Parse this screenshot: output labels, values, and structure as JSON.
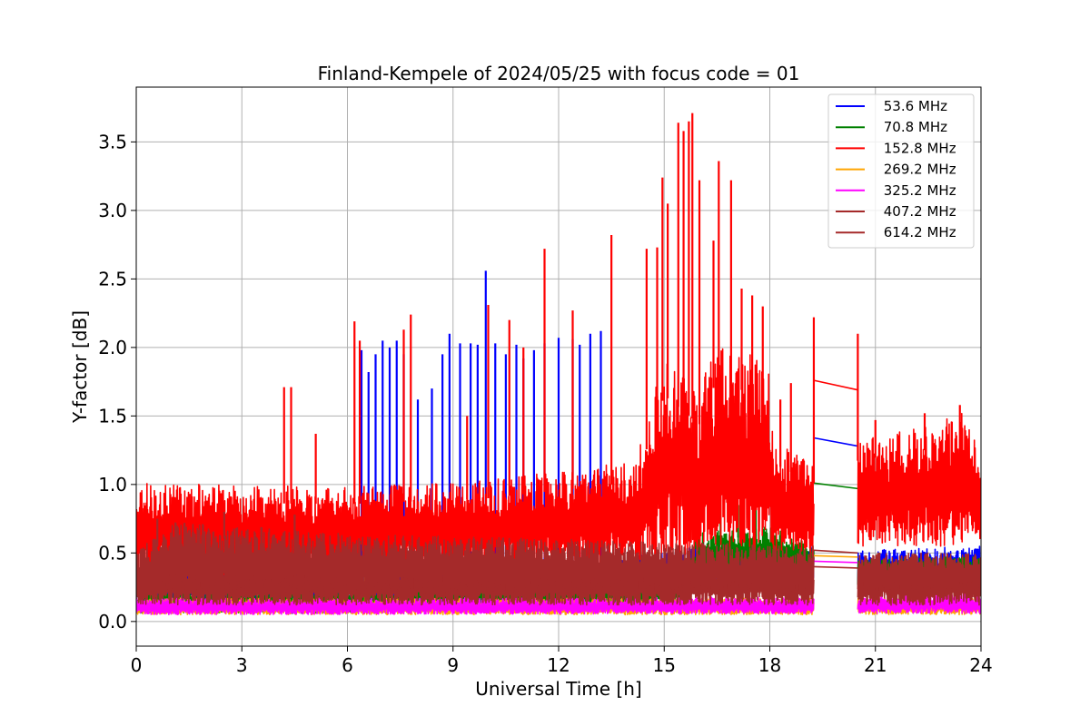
{
  "chart_data": {
    "type": "line",
    "title": "Finland-Kempele of 2024/05/25 with focus code = 01",
    "xlabel": "Universal Time [h]",
    "ylabel": "Y-factor [dB]",
    "xlim": [
      0,
      24
    ],
    "ylim": [
      -0.18,
      3.9
    ],
    "xticks": [
      0,
      3,
      6,
      9,
      12,
      15,
      18,
      21,
      24
    ],
    "yticks": [
      0.0,
      0.5,
      1.0,
      1.5,
      2.0,
      2.5,
      3.0,
      3.5
    ],
    "ytick_labels": [
      "0.0",
      "0.5",
      "1.0",
      "1.5",
      "2.0",
      "2.5",
      "3.0",
      "3.5"
    ],
    "grid": true,
    "legend_position": "top-right",
    "gap": [
      19.25,
      20.5
    ],
    "series": [
      {
        "name": " 53.6 MHz",
        "color": "#0000ff",
        "base": [
          [
            0,
            0.12
          ],
          [
            6,
            0.12
          ],
          [
            13.5,
            0.15
          ],
          [
            16,
            0.25
          ],
          [
            19.25,
            0.25
          ],
          [
            20.5,
            0.22
          ],
          [
            24,
            0.25
          ]
        ],
        "amp": [
          [
            0,
            0.25
          ],
          [
            6,
            0.3
          ],
          [
            13.5,
            0.3
          ],
          [
            19.25,
            0.3
          ],
          [
            20.5,
            0.3
          ],
          [
            24,
            0.3
          ]
        ],
        "gap_line": [
          [
            19.25,
            1.34
          ],
          [
            20.5,
            1.28
          ]
        ],
        "spikes": [
          [
            6.4,
            1.98
          ],
          [
            6.6,
            1.82
          ],
          [
            6.8,
            1.95
          ],
          [
            7.0,
            2.05
          ],
          [
            7.2,
            2.0
          ],
          [
            7.4,
            2.05
          ],
          [
            7.6,
            1.95
          ],
          [
            8.0,
            1.62
          ],
          [
            8.4,
            1.7
          ],
          [
            8.7,
            1.95
          ],
          [
            8.9,
            2.1
          ],
          [
            9.2,
            2.03
          ],
          [
            9.5,
            2.03
          ],
          [
            9.7,
            2.02
          ],
          [
            9.93,
            2.56
          ],
          [
            10.2,
            2.03
          ],
          [
            10.5,
            1.95
          ],
          [
            10.8,
            2.02
          ],
          [
            11.0,
            1.92
          ],
          [
            11.3,
            1.98
          ],
          [
            11.6,
            2.03
          ],
          [
            12.0,
            2.07
          ],
          [
            12.4,
            2.06
          ],
          [
            12.6,
            2.02
          ],
          [
            12.9,
            2.1
          ],
          [
            13.2,
            2.12
          ]
        ]
      },
      {
        "name": " 70.8 MHz",
        "color": "#008000",
        "base": [
          [
            0,
            0.06
          ],
          [
            6,
            0.06
          ],
          [
            15.5,
            0.12
          ],
          [
            16,
            0.35
          ],
          [
            18,
            0.35
          ],
          [
            19.25,
            0.3
          ],
          [
            20.5,
            0.25
          ],
          [
            24,
            0.28
          ]
        ],
        "amp": [
          [
            0,
            0.15
          ],
          [
            15.5,
            0.2
          ],
          [
            16,
            0.3
          ],
          [
            18,
            0.35
          ],
          [
            19.25,
            0.25
          ],
          [
            20.5,
            0.2
          ],
          [
            24,
            0.2
          ]
        ],
        "gap_line": [
          [
            19.25,
            1.01
          ],
          [
            20.5,
            0.97
          ]
        ],
        "spikes": [
          [
            15.9,
            0.8
          ],
          [
            16.6,
            0.85
          ],
          [
            17.1,
            0.85
          ],
          [
            17.6,
            0.85
          ]
        ]
      },
      {
        "name": " 152.8 MHz",
        "color": "#ff0000",
        "base": [
          [
            0,
            0.33
          ],
          [
            6,
            0.36
          ],
          [
            10,
            0.38
          ],
          [
            14.2,
            0.42
          ],
          [
            15,
            0.45
          ],
          [
            16,
            0.48
          ],
          [
            18,
            0.52
          ],
          [
            19.25,
            0.45
          ],
          [
            20.5,
            0.55
          ],
          [
            24,
            0.55
          ]
        ],
        "amp": [
          [
            0,
            0.68
          ],
          [
            6,
            0.62
          ],
          [
            10,
            0.65
          ],
          [
            14.2,
            0.75
          ],
          [
            15,
            1.5
          ],
          [
            16,
            1.2
          ],
          [
            16.5,
            1.6
          ],
          [
            18,
            1.35
          ],
          [
            18.1,
            0.8
          ],
          [
            19.25,
            0.7
          ],
          [
            20.5,
            0.78
          ],
          [
            22.5,
            0.88
          ],
          [
            23.5,
            0.98
          ],
          [
            24,
            0.65
          ]
        ],
        "gap_line": [
          [
            19.25,
            1.76
          ],
          [
            20.5,
            1.69
          ]
        ],
        "spikes": [
          [
            4.2,
            1.71
          ],
          [
            4.4,
            1.71
          ],
          [
            5.1,
            1.37
          ],
          [
            6.2,
            2.19
          ],
          [
            6.35,
            2.05
          ],
          [
            7.6,
            2.13
          ],
          [
            7.8,
            2.24
          ],
          [
            9.4,
            1.5
          ],
          [
            10.0,
            2.31
          ],
          [
            10.6,
            2.2
          ],
          [
            11.0,
            2.0
          ],
          [
            11.6,
            2.72
          ],
          [
            12.4,
            2.27
          ],
          [
            13.5,
            2.82
          ],
          [
            14.5,
            2.72
          ],
          [
            14.8,
            2.73
          ],
          [
            14.95,
            3.24
          ],
          [
            15.1,
            3.05
          ],
          [
            15.4,
            3.64
          ],
          [
            15.55,
            3.58
          ],
          [
            15.7,
            3.65
          ],
          [
            15.8,
            3.71
          ],
          [
            16.0,
            3.22
          ],
          [
            16.4,
            2.78
          ],
          [
            16.55,
            3.36
          ],
          [
            16.9,
            3.22
          ],
          [
            17.2,
            2.43
          ],
          [
            17.5,
            2.38
          ],
          [
            17.8,
            2.3
          ],
          [
            18.3,
            1.62
          ],
          [
            18.6,
            1.74
          ],
          [
            19.25,
            2.22
          ],
          [
            20.5,
            2.1
          ],
          [
            21.0,
            1.47
          ],
          [
            22.4,
            1.52
          ],
          [
            23.4,
            1.58
          ]
        ]
      },
      {
        "name": " 269.2 MHz",
        "color": "#ffa500",
        "base": [
          [
            0,
            0.05
          ],
          [
            24,
            0.05
          ]
        ],
        "amp": [
          [
            0,
            0.12
          ],
          [
            24,
            0.12
          ]
        ],
        "gap_line": [
          [
            19.25,
            0.48
          ],
          [
            20.5,
            0.47
          ]
        ],
        "spikes": [
          [
            6.5,
            0.62
          ],
          [
            13.0,
            0.5
          ]
        ]
      },
      {
        "name": " 325.2 MHz",
        "color": "#ff00ff",
        "base": [
          [
            0,
            0.05
          ],
          [
            24,
            0.06
          ]
        ],
        "amp": [
          [
            0,
            0.12
          ],
          [
            20.5,
            0.12
          ],
          [
            23.5,
            0.15
          ],
          [
            24,
            0.12
          ]
        ],
        "gap_line": [
          [
            19.25,
            0.44
          ],
          [
            20.5,
            0.43
          ]
        ],
        "spikes": [
          [
            1.0,
            0.5
          ],
          [
            1.3,
            0.5
          ]
        ]
      },
      {
        "name": " 407.2 MHz",
        "color": "#a52a2a",
        "base": [
          [
            0,
            0.12
          ],
          [
            24,
            0.12
          ]
        ],
        "amp": [
          [
            0,
            0.3
          ],
          [
            24,
            0.3
          ]
        ],
        "gap_line": [
          [
            19.25,
            0.52
          ],
          [
            20.5,
            0.5
          ]
        ],
        "spikes": []
      },
      {
        "name": " 614.2 MHz",
        "color": "#a52a2a",
        "base": [
          [
            0,
            0.16
          ],
          [
            1,
            0.2
          ],
          [
            5,
            0.2
          ],
          [
            12,
            0.2
          ],
          [
            19.25,
            0.2
          ],
          [
            20.5,
            0.2
          ],
          [
            24,
            0.2
          ]
        ],
        "amp": [
          [
            0,
            0.35
          ],
          [
            1,
            0.52
          ],
          [
            3,
            0.5
          ],
          [
            5,
            0.45
          ],
          [
            12,
            0.4
          ],
          [
            19.25,
            0.35
          ],
          [
            20.5,
            0.3
          ],
          [
            24,
            0.3
          ]
        ],
        "gap_line": [
          [
            19.25,
            0.4
          ],
          [
            20.5,
            0.39
          ]
        ],
        "spikes": [
          [
            0.6,
            0.75
          ],
          [
            2.5,
            0.8
          ],
          [
            4.5,
            0.78
          ]
        ]
      }
    ]
  }
}
